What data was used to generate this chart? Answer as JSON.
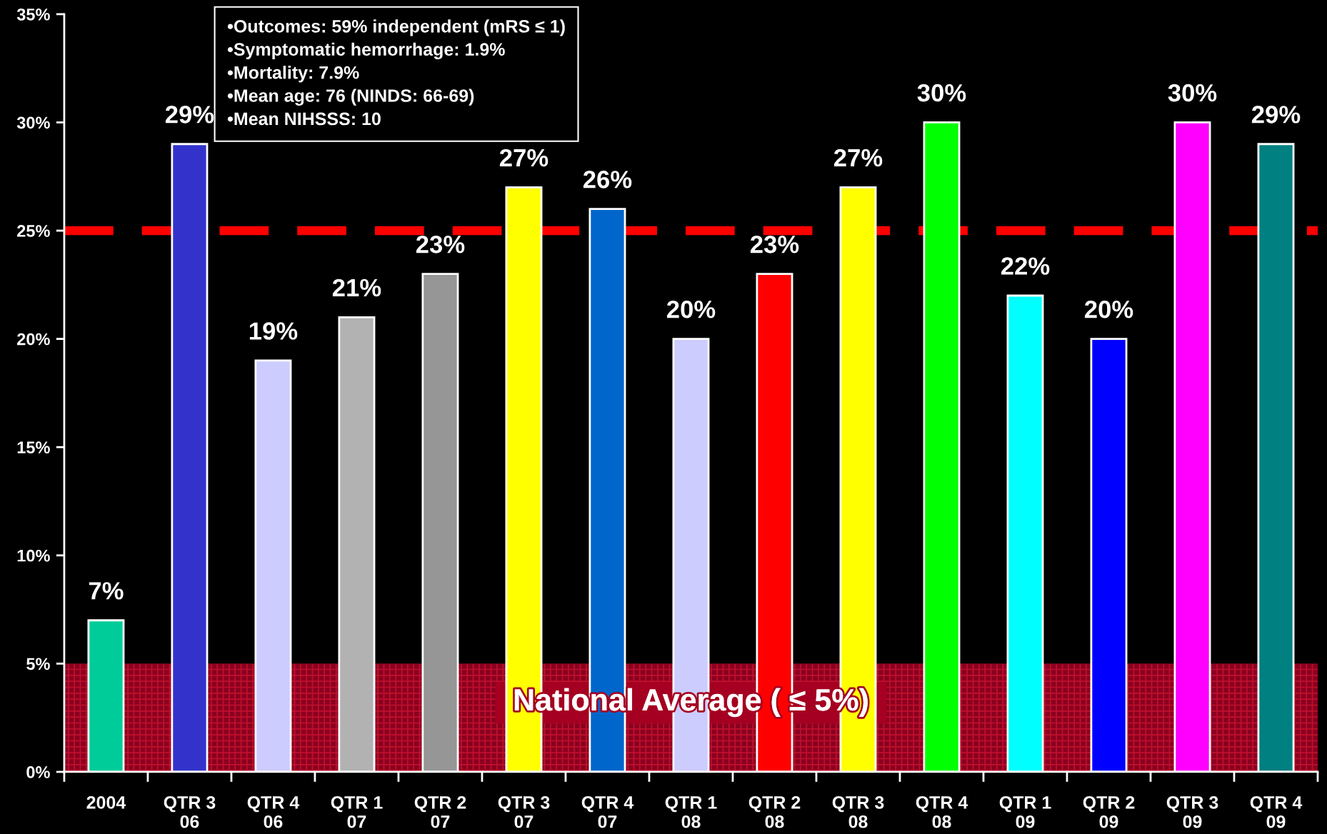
{
  "chart_data": {
    "type": "bar",
    "categories": [
      "2004",
      "QTR 3\n06",
      "QTR 4\n06",
      "QTR 1\n07",
      "QTR 2\n07",
      "QTR 3\n07",
      "QTR 4\n07",
      "QTR 1\n08",
      "QTR 2\n08",
      "QTR 3\n08",
      "QTR 4\n08",
      "QTR 1\n09",
      "QTR 2\n09",
      "QTR 3\n09",
      "QTR 4\n09"
    ],
    "values": [
      7,
      29,
      19,
      21,
      23,
      27,
      26,
      20,
      23,
      27,
      30,
      22,
      20,
      30,
      29
    ],
    "colors": [
      "#00cc99",
      "#3333cc",
      "#ccccff",
      "#b2b2b2",
      "#969696",
      "#ffff00",
      "#0066cc",
      "#ccccff",
      "#ff0000",
      "#ffff00",
      "#00ff00",
      "#00ffff",
      "#0000ff",
      "#ff00ff",
      "#008080"
    ],
    "value_labels": [
      "7%",
      "29%",
      "19%",
      "21%",
      "23%",
      "27%",
      "26%",
      "20%",
      "23%",
      "27%",
      "30%",
      "22%",
      "20%",
      "30%",
      "29%"
    ],
    "ylim": [
      0,
      35
    ],
    "yticks": [
      {
        "value": 0,
        "label": "0%"
      },
      {
        "value": 5,
        "label": "5%"
      },
      {
        "value": 10,
        "label": "10%"
      },
      {
        "value": 15,
        "label": "15%"
      },
      {
        "value": 20,
        "label": "20%"
      },
      {
        "value": 25,
        "label": "25%"
      },
      {
        "value": 30,
        "label": "30%"
      },
      {
        "value": 35,
        "label": "35%"
      }
    ],
    "ref_lines": [
      {
        "axis": "y",
        "value": 25,
        "color": "#ff0000",
        "line_style": "dashed"
      }
    ],
    "bands": [
      {
        "axis": "y",
        "from": 0,
        "to": 5,
        "label": "National Average ( ≤ 5%)",
        "color": "#8b0020"
      }
    ],
    "annotations": [
      "•Outcomes: 59% independent (mRS ≤ 1)",
      "•Symptomatic hemorrhage: 1.9%",
      "•Mortality: 7.9%",
      "•Mean age: 76 (NINDS: 66-69)",
      "•Mean NIHSSS: 10"
    ]
  }
}
